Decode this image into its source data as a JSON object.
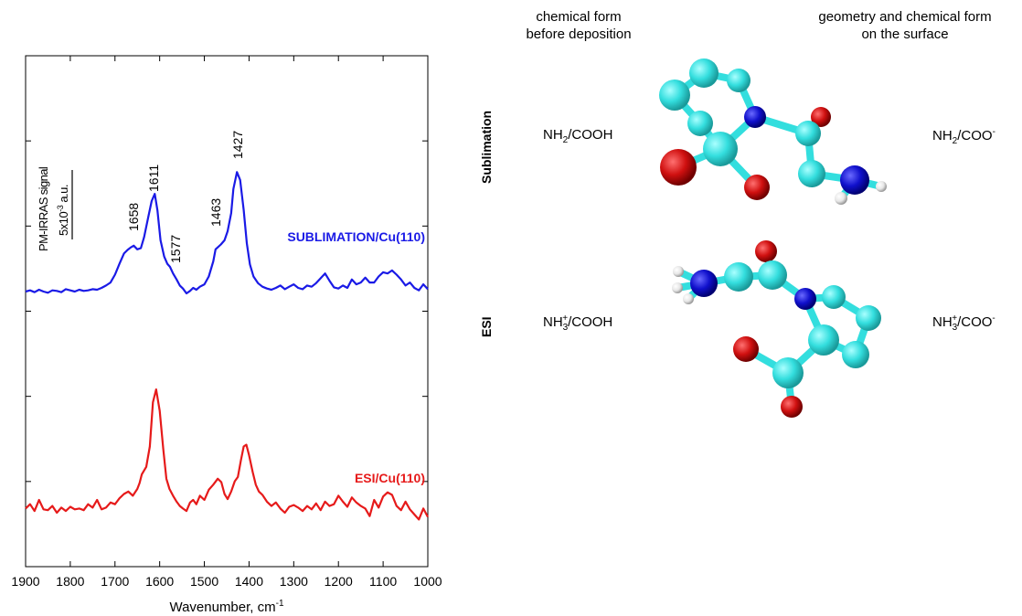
{
  "chart_data": {
    "type": "line",
    "xlabel": "Wavenumber, cm",
    "xlabel_sup": "-1",
    "xlim": [
      1900,
      1000
    ],
    "x_reversed": true,
    "xticks": [
      "1900",
      "1800",
      "1700",
      "1600",
      "1500",
      "1400",
      "1300",
      "1200",
      "1100",
      "1000"
    ],
    "ylabel": "PM-IRRAS signal",
    "scale_bar": {
      "prefix": "5x10",
      "exp": "-3",
      "suffix": " a.u."
    },
    "yticks_labeled": false,
    "series": [
      {
        "name": "SUBLIMATION/Cu(110)",
        "color": "#1a1ae6",
        "x": [
          1900,
          1890,
          1880,
          1870,
          1860,
          1850,
          1840,
          1830,
          1820,
          1810,
          1800,
          1790,
          1780,
          1770,
          1760,
          1750,
          1740,
          1730,
          1720,
          1710,
          1700,
          1690,
          1680,
          1672,
          1665,
          1658,
          1650,
          1642,
          1635,
          1625,
          1618,
          1611,
          1605,
          1598,
          1590,
          1583,
          1577,
          1570,
          1562,
          1555,
          1548,
          1540,
          1532,
          1525,
          1518,
          1510,
          1500,
          1490,
          1480,
          1475,
          1463,
          1455,
          1448,
          1440,
          1435,
          1427,
          1420,
          1412,
          1405,
          1398,
          1390,
          1380,
          1370,
          1360,
          1350,
          1340,
          1330,
          1320,
          1310,
          1300,
          1290,
          1280,
          1270,
          1260,
          1250,
          1240,
          1230,
          1220,
          1210,
          1200,
          1190,
          1180,
          1170,
          1160,
          1150,
          1140,
          1130,
          1120,
          1110,
          1100,
          1090,
          1080,
          1070,
          1060,
          1050,
          1040,
          1030,
          1020,
          1010,
          1000
        ],
        "y": [
          0.0,
          0.2,
          -0.1,
          0.3,
          0.0,
          -0.2,
          0.2,
          0.1,
          -0.1,
          0.4,
          0.2,
          0.0,
          0.3,
          0.1,
          0.2,
          0.4,
          0.3,
          0.6,
          1.0,
          1.5,
          2.8,
          4.6,
          6.3,
          6.9,
          7.3,
          7.6,
          7.0,
          7.2,
          9.0,
          12.5,
          15.0,
          16.2,
          13.5,
          8.5,
          5.8,
          4.6,
          4.1,
          3.0,
          2.0,
          1.0,
          0.5,
          -0.3,
          0.1,
          0.6,
          0.3,
          0.8,
          1.2,
          2.5,
          5.0,
          7.0,
          7.8,
          8.5,
          10.0,
          13.0,
          17.0,
          19.8,
          18.5,
          13.5,
          8.0,
          4.5,
          2.5,
          1.4,
          0.8,
          0.5,
          0.3,
          0.6,
          1.0,
          0.4,
          0.8,
          1.2,
          0.6,
          0.4,
          1.0,
          0.8,
          1.4,
          2.2,
          3.0,
          1.8,
          0.7,
          0.5,
          1.0,
          0.6,
          2.0,
          1.2,
          1.5,
          2.3,
          1.5,
          1.5,
          2.5,
          3.2,
          3.0,
          3.5,
          2.8,
          2.0,
          1.0,
          1.5,
          0.6,
          0.2,
          1.2,
          0.4
        ]
      },
      {
        "name": "ESI/Cu(110)",
        "color": "#e61a1a",
        "x": [
          1900,
          1890,
          1880,
          1870,
          1860,
          1850,
          1840,
          1830,
          1820,
          1810,
          1800,
          1790,
          1780,
          1770,
          1760,
          1750,
          1740,
          1730,
          1720,
          1710,
          1700,
          1690,
          1680,
          1670,
          1660,
          1650,
          1645,
          1640,
          1630,
          1622,
          1615,
          1608,
          1600,
          1592,
          1585,
          1578,
          1570,
          1562,
          1555,
          1548,
          1540,
          1532,
          1525,
          1518,
          1510,
          1500,
          1490,
          1480,
          1470,
          1462,
          1455,
          1448,
          1440,
          1432,
          1425,
          1418,
          1412,
          1406,
          1400,
          1392,
          1385,
          1378,
          1370,
          1360,
          1350,
          1340,
          1330,
          1320,
          1310,
          1300,
          1290,
          1280,
          1270,
          1260,
          1250,
          1240,
          1230,
          1220,
          1210,
          1200,
          1190,
          1180,
          1170,
          1160,
          1150,
          1140,
          1130,
          1120,
          1110,
          1100,
          1090,
          1080,
          1070,
          1060,
          1050,
          1040,
          1030,
          1020,
          1010,
          1000
        ],
        "y": [
          0.5,
          1.0,
          0.2,
          1.5,
          0.4,
          0.3,
          0.8,
          0.0,
          0.6,
          0.2,
          0.7,
          0.4,
          0.5,
          0.3,
          1.0,
          0.6,
          1.5,
          0.4,
          0.6,
          1.2,
          1.0,
          1.7,
          2.2,
          2.5,
          2.0,
          2.8,
          3.5,
          4.5,
          5.4,
          7.8,
          13.0,
          14.5,
          12.0,
          7.5,
          4.0,
          2.8,
          2.0,
          1.3,
          0.8,
          0.5,
          0.2,
          1.2,
          1.5,
          1.0,
          2.0,
          1.5,
          2.7,
          3.3,
          4.0,
          3.6,
          2.2,
          1.6,
          2.5,
          3.7,
          4.2,
          6.2,
          7.8,
          8.0,
          6.8,
          4.8,
          3.3,
          2.5,
          2.1,
          1.3,
          0.8,
          1.2,
          0.5,
          0.0,
          0.7,
          0.9,
          0.6,
          0.2,
          0.8,
          0.4,
          1.1,
          0.3,
          1.3,
          0.8,
          1.0,
          2.0,
          1.3,
          0.7,
          1.8,
          1.2,
          0.8,
          0.5,
          -0.4,
          1.5,
          0.6,
          1.9,
          2.4,
          2.1,
          0.8,
          0.3,
          1.3,
          0.4,
          -0.2,
          -0.8,
          0.5,
          -0.5
        ]
      }
    ],
    "annotations": [
      "1658",
      "1611",
      "1577",
      "1463",
      "1427"
    ]
  },
  "table": {
    "headers": {
      "col1_line1": "chemical form",
      "col1_line2": "before deposition",
      "col2_line1": "geometry and chemical form",
      "col2_line2": "on the surface"
    },
    "rows": [
      {
        "label": "Sublimation",
        "before": {
          "a": "NH",
          "a_sub": "2",
          "b": "/COOH"
        },
        "after": {
          "a": "NH",
          "a_sub": "2",
          "b": "/COO",
          "b_sup": "-"
        }
      },
      {
        "label": "ESI",
        "before": {
          "a": "NH",
          "a_sub": "3",
          "a_sup": "+",
          "b": "/COOH"
        },
        "after": {
          "a": "NH",
          "a_sub": "3",
          "a_sup": "+",
          "b": "/COO",
          "b_sup": "-"
        }
      }
    ]
  },
  "colors": {
    "carbon": "#33dede",
    "nitrogen": "#1010cc",
    "oxygen": "#d01010",
    "hydrogen": "#e6e6e6"
  }
}
